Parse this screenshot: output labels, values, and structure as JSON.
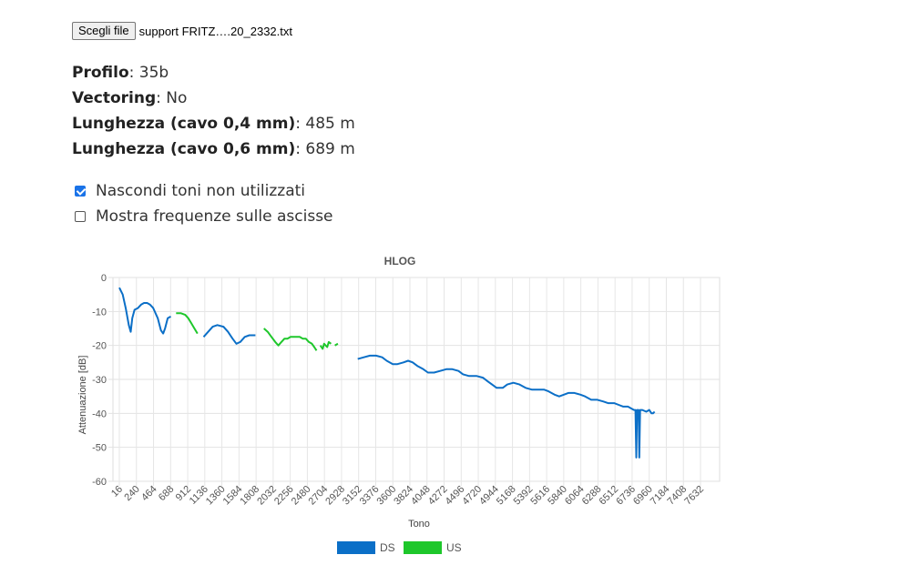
{
  "file": {
    "button_label": "Scegli file",
    "file_name": "support FRITZ….20_2332.txt"
  },
  "info": [
    {
      "label": "Profilo",
      "value": "35b"
    },
    {
      "label": "Vectoring",
      "value": "No"
    },
    {
      "label": "Lunghezza (cavo 0,4 mm)",
      "value": "485 m"
    },
    {
      "label": "Lunghezza (cavo 0,6 mm)",
      "value": "689 m"
    }
  ],
  "options": [
    {
      "label": "Nascondi toni non utilizzati",
      "checked": true
    },
    {
      "label": "Mostra frequenze sulle ascisse",
      "checked": false
    }
  ],
  "chart_data": {
    "type": "line",
    "title": "HLOG",
    "xlabel": "Tono",
    "ylabel": "Attenuazione [dB]",
    "xlim": [
      16,
      7632
    ],
    "ylim": [
      -60,
      0
    ],
    "grid": true,
    "legend": "bottom",
    "x_ticks": [
      "16",
      "240",
      "464",
      "688",
      "912",
      "1136",
      "1360",
      "1584",
      "1808",
      "2032",
      "2256",
      "2480",
      "2704",
      "2928",
      "3152",
      "3376",
      "3600",
      "3824",
      "4048",
      "4272",
      "4496",
      "4720",
      "4944",
      "5168",
      "5392",
      "5616",
      "5840",
      "6064",
      "6288",
      "6512",
      "6736",
      "6960",
      "7184",
      "7408",
      "7632"
    ],
    "y_ticks": [
      0,
      -10,
      -20,
      -30,
      -40,
      -50,
      -60
    ],
    "series": [
      {
        "name": "DS",
        "color": "#0b6fc7",
        "segments": [
          [
            [
              16,
              -3
            ],
            [
              60,
              -5
            ],
            [
              100,
              -9
            ],
            [
              140,
              -14
            ],
            [
              165,
              -16
            ],
            [
              185,
              -12
            ],
            [
              215,
              -9.5
            ],
            [
              260,
              -9
            ],
            [
              300,
              -8
            ],
            [
              340,
              -7.5
            ],
            [
              380,
              -7.5
            ],
            [
              420,
              -8
            ],
            [
              460,
              -9
            ],
            [
              520,
              -12
            ],
            [
              560,
              -15.5
            ],
            [
              590,
              -16.5
            ],
            [
              615,
              -15
            ],
            [
              650,
              -12
            ],
            [
              690,
              -11.5
            ]
          ],
          [
            [
              1120,
              -17.5
            ],
            [
              1180,
              -16
            ],
            [
              1240,
              -14.5
            ],
            [
              1300,
              -14
            ],
            [
              1380,
              -14.5
            ],
            [
              1440,
              -16
            ],
            [
              1500,
              -18
            ],
            [
              1550,
              -19.5
            ],
            [
              1600,
              -19
            ],
            [
              1660,
              -17.5
            ],
            [
              1720,
              -17
            ],
            [
              1800,
              -17
            ]
          ],
          [
            [
              3140,
              -24
            ],
            [
              3220,
              -23.5
            ],
            [
              3300,
              -23
            ],
            [
              3380,
              -23
            ],
            [
              3460,
              -23.5
            ],
            [
              3520,
              -24.5
            ],
            [
              3600,
              -25.5
            ],
            [
              3660,
              -25.5
            ],
            [
              3740,
              -25
            ],
            [
              3800,
              -24.5
            ],
            [
              3860,
              -25
            ],
            [
              3920,
              -26
            ],
            [
              4000,
              -27
            ],
            [
              4060,
              -28
            ],
            [
              4140,
              -28
            ],
            [
              4220,
              -27.5
            ],
            [
              4300,
              -27
            ],
            [
              4380,
              -27
            ],
            [
              4460,
              -27.5
            ],
            [
              4520,
              -28.5
            ],
            [
              4600,
              -29
            ],
            [
              4700,
              -29
            ],
            [
              4780,
              -29.5
            ],
            [
              4840,
              -30.5
            ],
            [
              4900,
              -31.5
            ],
            [
              4960,
              -32.5
            ],
            [
              5040,
              -32.5
            ],
            [
              5100,
              -31.5
            ],
            [
              5180,
              -31
            ],
            [
              5260,
              -31.5
            ],
            [
              5340,
              -32.5
            ],
            [
              5420,
              -33
            ],
            [
              5500,
              -33
            ],
            [
              5580,
              -33
            ],
            [
              5640,
              -33.5
            ],
            [
              5720,
              -34.5
            ],
            [
              5780,
              -35
            ],
            [
              5840,
              -34.5
            ],
            [
              5900,
              -34
            ],
            [
              5980,
              -34
            ],
            [
              6060,
              -34.5
            ],
            [
              6120,
              -35
            ],
            [
              6200,
              -36
            ],
            [
              6280,
              -36
            ],
            [
              6360,
              -36.5
            ],
            [
              6420,
              -37
            ],
            [
              6500,
              -37
            ],
            [
              6560,
              -37.5
            ],
            [
              6620,
              -38
            ],
            [
              6680,
              -38
            ],
            [
              6720,
              -38.5
            ],
            [
              6760,
              -39
            ],
            [
              6780,
              -39
            ],
            [
              6790,
              -53
            ],
            [
              6800,
              -39
            ],
            [
              6820,
              -39
            ],
            [
              6830,
              -53
            ],
            [
              6840,
              -39
            ],
            [
              6870,
              -39
            ],
            [
              6920,
              -39.5
            ],
            [
              6960,
              -39
            ],
            [
              6990,
              -40
            ],
            [
              7010,
              -40
            ],
            [
              7030,
              -39.5
            ]
          ]
        ]
      },
      {
        "name": "US",
        "color": "#1ec72b",
        "segments": [
          [
            [
              760,
              -10.5
            ],
            [
              820,
              -10.5
            ],
            [
              880,
              -11
            ],
            [
              920,
              -12
            ],
            [
              960,
              -13.5
            ],
            [
              1000,
              -15
            ],
            [
              1040,
              -16.5
            ]
          ],
          [
            [
              1910,
              -15
            ],
            [
              1960,
              -16
            ],
            [
              2010,
              -17.5
            ],
            [
              2060,
              -19
            ],
            [
              2100,
              -20
            ],
            [
              2140,
              -19
            ],
            [
              2180,
              -18
            ],
            [
              2220,
              -18
            ],
            [
              2260,
              -17.5
            ],
            [
              2300,
              -17.5
            ],
            [
              2340,
              -17.5
            ],
            [
              2380,
              -17.5
            ],
            [
              2420,
              -18
            ],
            [
              2460,
              -18
            ],
            [
              2500,
              -19
            ],
            [
              2540,
              -19.5
            ],
            [
              2570,
              -20.5
            ],
            [
              2600,
              -21.5
            ]
          ],
          [
            [
              2650,
              -20
            ],
            [
              2680,
              -21
            ],
            [
              2700,
              -19.5
            ],
            [
              2740,
              -20.5
            ],
            [
              2760,
              -19
            ],
            [
              2790,
              -19.5
            ]
          ],
          [
            [
              2840,
              -20
            ],
            [
              2880,
              -19.5
            ]
          ]
        ]
      }
    ]
  }
}
